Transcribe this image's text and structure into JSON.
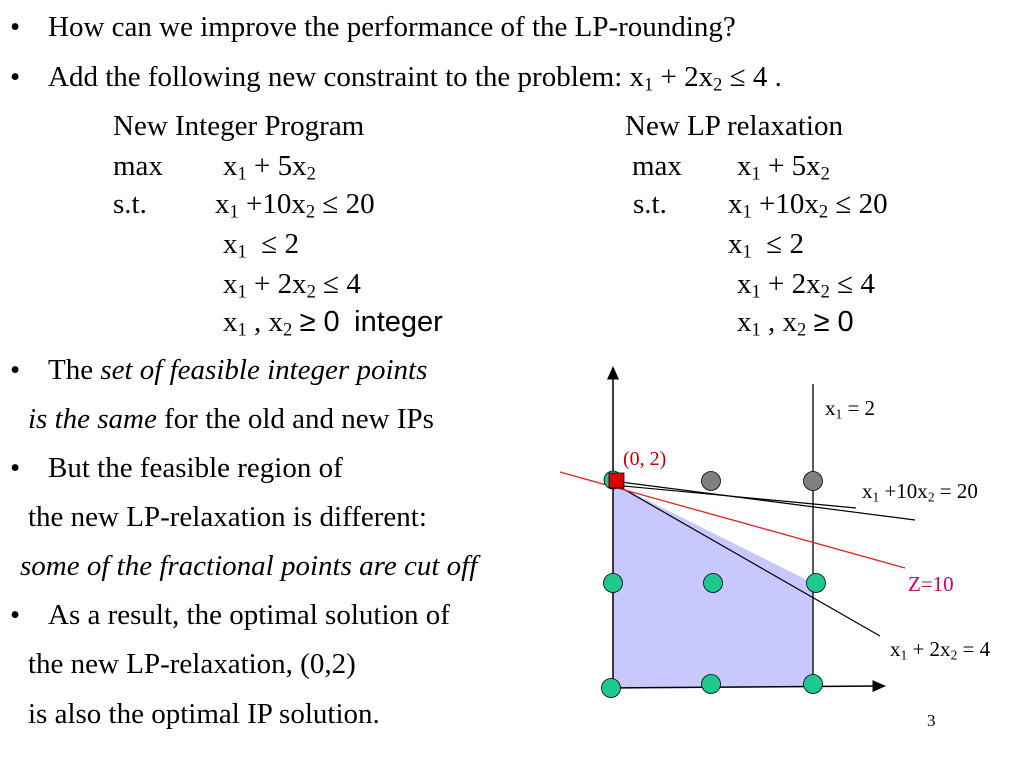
{
  "bullets": {
    "b1": "How can we improve the performance of the LP-rounding?",
    "b2_text": "Add the following new constraint to the problem: ",
    "b2_constraint_a": "x",
    "b2_sub1": "1",
    "b2_constraint_b": " + 2x",
    "b2_sub2": "2",
    "b2_constraint_c": " ≤ 4 .",
    "b3_normal": "The ",
    "b3_italic": "set of feasible integer points",
    "b3_line2_italic": "is the same",
    "b3_line2_normal": " for the old and new IPs",
    "b4_line1": "But the feasible region of",
    "b4_line2": "the new LP-relaxation is different:",
    "b4_line3_italic": "some of the fractional points are cut off",
    "b5_line1": "As a result, the optimal solution of",
    "b5_line2": "the new LP-relaxation, (0,2)",
    "b5_line3": "is also the optimal IP solution."
  },
  "ip": {
    "heading": "New Integer Program",
    "max_kw": "max",
    "st_kw": "s.t.",
    "integer_kw": "integer",
    "geq0": "≥ 0"
  },
  "lp": {
    "heading": "New LP relaxation",
    "max_kw": "max",
    "st_kw": "s.t.",
    "geq0": "≥ 0"
  },
  "graph": {
    "label_x1_eq2": "x₁ = 2",
    "label_c1": "x₁ +10x₂ = 20",
    "label_c2": "x₁ + 2x₂ = 4",
    "label_z": "Z=10",
    "label_opt": "(0, 2)",
    "colors": {
      "region_fill": "#c8c8ff",
      "integer_point": "#1ec98f",
      "infeasible_point": "#808080",
      "optimum": "#e00000",
      "z_line": "#e02020",
      "opt_label": "#c00000",
      "z_label": "#d0006f"
    }
  },
  "page_number": "3"
}
